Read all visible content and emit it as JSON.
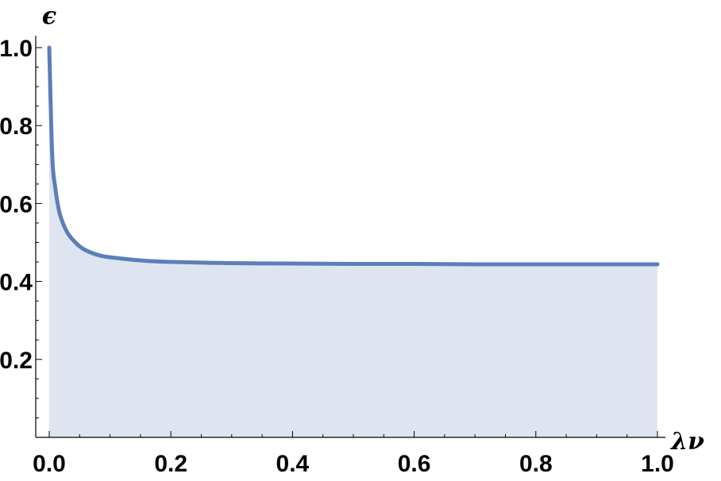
{
  "chart_data": {
    "type": "area",
    "title": "",
    "xlabel": "λν",
    "ylabel": "ϵ",
    "xlim": [
      0,
      1
    ],
    "ylim": [
      0,
      1
    ],
    "x_ticks": [
      "0.0",
      "0.2",
      "0.4",
      "0.6",
      "0.8",
      "1.0"
    ],
    "y_ticks": [
      "0.2",
      "0.4",
      "0.6",
      "0.8",
      "1.0"
    ],
    "grid": false,
    "colors": {
      "line": "#5b7fb8",
      "fill": "#dfe5f0"
    },
    "series": [
      {
        "x": [
          0.0,
          0.005,
          0.01,
          0.015,
          0.02,
          0.03,
          0.04,
          0.05,
          0.06,
          0.08,
          0.1,
          0.15,
          0.2,
          0.3,
          0.4,
          0.5,
          0.6,
          0.7,
          0.8,
          0.9,
          1.0
        ],
        "y": [
          1.0,
          0.72,
          0.64,
          0.59,
          0.56,
          0.525,
          0.505,
          0.49,
          0.48,
          0.468,
          0.462,
          0.454,
          0.45,
          0.447,
          0.446,
          0.445,
          0.445,
          0.444,
          0.444,
          0.444,
          0.444
        ]
      }
    ]
  }
}
